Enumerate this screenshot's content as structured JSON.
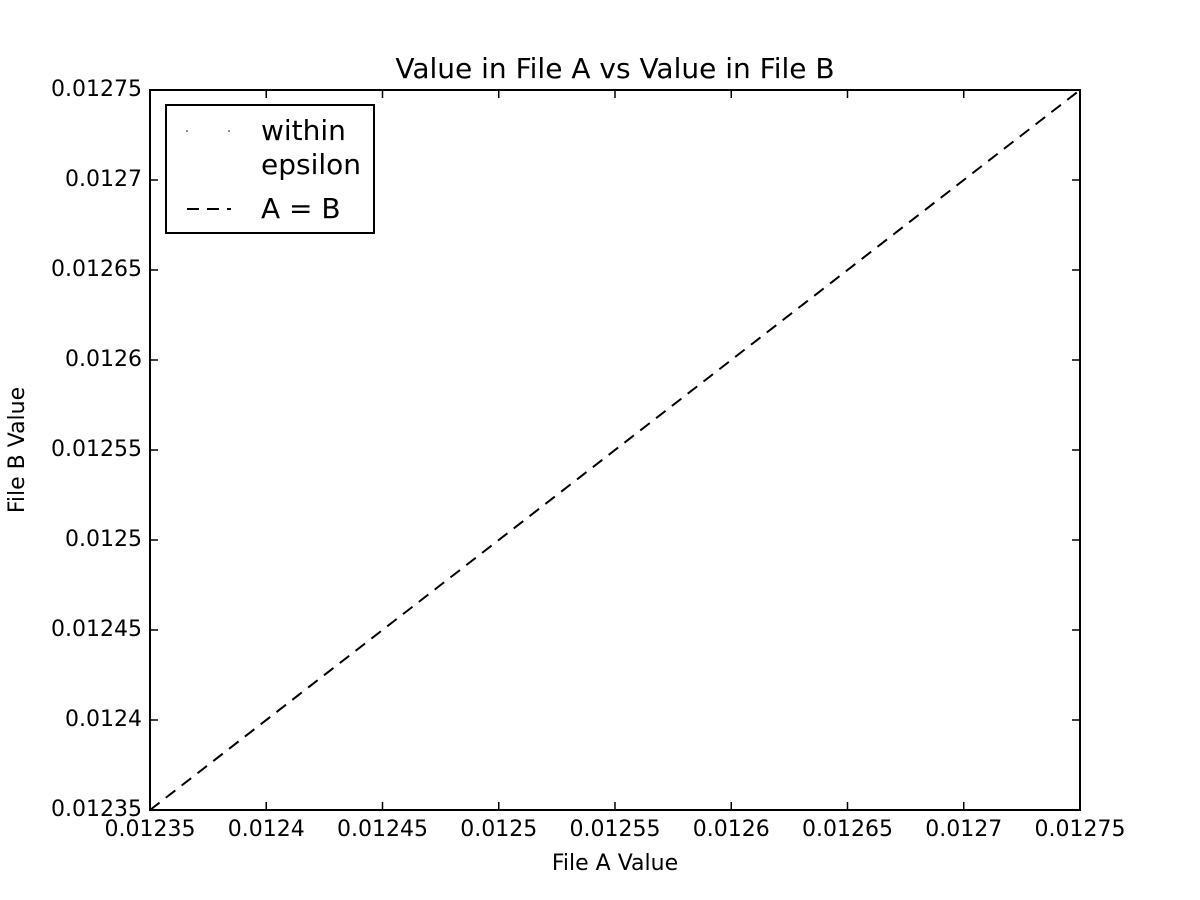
{
  "chart_data": {
    "type": "scatter",
    "title": "Value in File A vs Value in File B",
    "x_label": "File A Value",
    "y_label": "File B Value",
    "xlim": [
      0.01235,
      0.01275
    ],
    "ylim": [
      0.01235,
      0.01275
    ],
    "xticks": [
      0.01235,
      0.0124,
      0.01245,
      0.0125,
      0.01255,
      0.0126,
      0.01265,
      0.0127,
      0.01275
    ],
    "yticks": [
      0.01235,
      0.0124,
      0.01245,
      0.0125,
      0.01255,
      0.0126,
      0.01265,
      0.0127,
      0.01275
    ],
    "grid": false,
    "legend": "upper left",
    "series": [
      {
        "name": "within epsilon",
        "color": "#000000",
        "marker": "point",
        "x": [],
        "values": []
      },
      {
        "name": "A = B",
        "color": "#000000",
        "linestyle": "dashed",
        "x": [
          0.01235,
          0.01275
        ],
        "values": [
          0.01235,
          0.01275
        ]
      }
    ]
  }
}
